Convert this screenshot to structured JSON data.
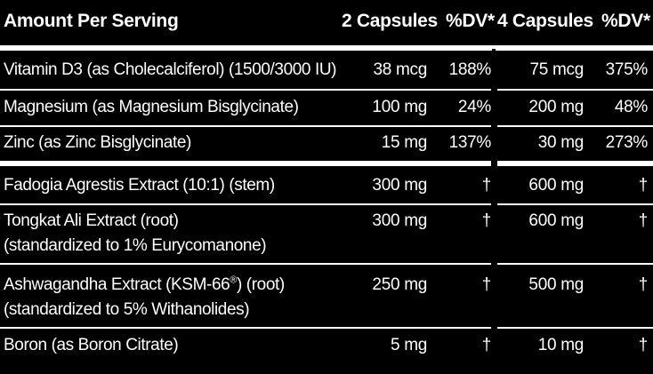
{
  "header": {
    "amount_per_serving": "Amount Per Serving",
    "col_2caps": "2 Capsules",
    "col_dv1": "%DV*",
    "col_4caps": "4 Capsules",
    "col_dv2": "%DV*"
  },
  "rows": [
    {
      "name": "Vitamin D3 (as Cholecalciferol) (1500/3000 IU)",
      "amt2": "38 mcg",
      "dv2": "188%",
      "amt4": "75 mcg",
      "dv4": "375%"
    },
    {
      "name": "Magnesium (as Magnesium Bisglycinate)",
      "amt2": "100 mg",
      "dv2": "24%",
      "amt4": "200 mg",
      "dv4": "48%"
    },
    {
      "name": "Zinc (as Zinc Bisglycinate)",
      "amt2": "15 mg",
      "dv2": "137%",
      "amt4": "30 mg",
      "dv4": "273%"
    },
    {
      "name": "Fadogia Agrestis Extract (10:1) (stem)",
      "amt2": "300 mg",
      "dv2": "†",
      "amt4": "600 mg",
      "dv4": "†"
    },
    {
      "name": "Tongkat Ali Extract (root)",
      "name2": "(standardized to 1% Eurycomanone)",
      "amt2": "300 mg",
      "dv2": "†",
      "amt4": "600 mg",
      "dv4": "†"
    },
    {
      "name": "Ashwagandha Extract (KSM-66",
      "name_sup": "®",
      "name_tail": ") (root)",
      "name2": "(standardized to 5% Withanolides)",
      "amt2": "250 mg",
      "dv2": "†",
      "amt4": "500 mg",
      "dv4": "†"
    },
    {
      "name": "Boron (as Boron Citrate)",
      "amt2": "5 mg",
      "dv2": "†",
      "amt4": "10 mg",
      "dv4": "†"
    }
  ]
}
